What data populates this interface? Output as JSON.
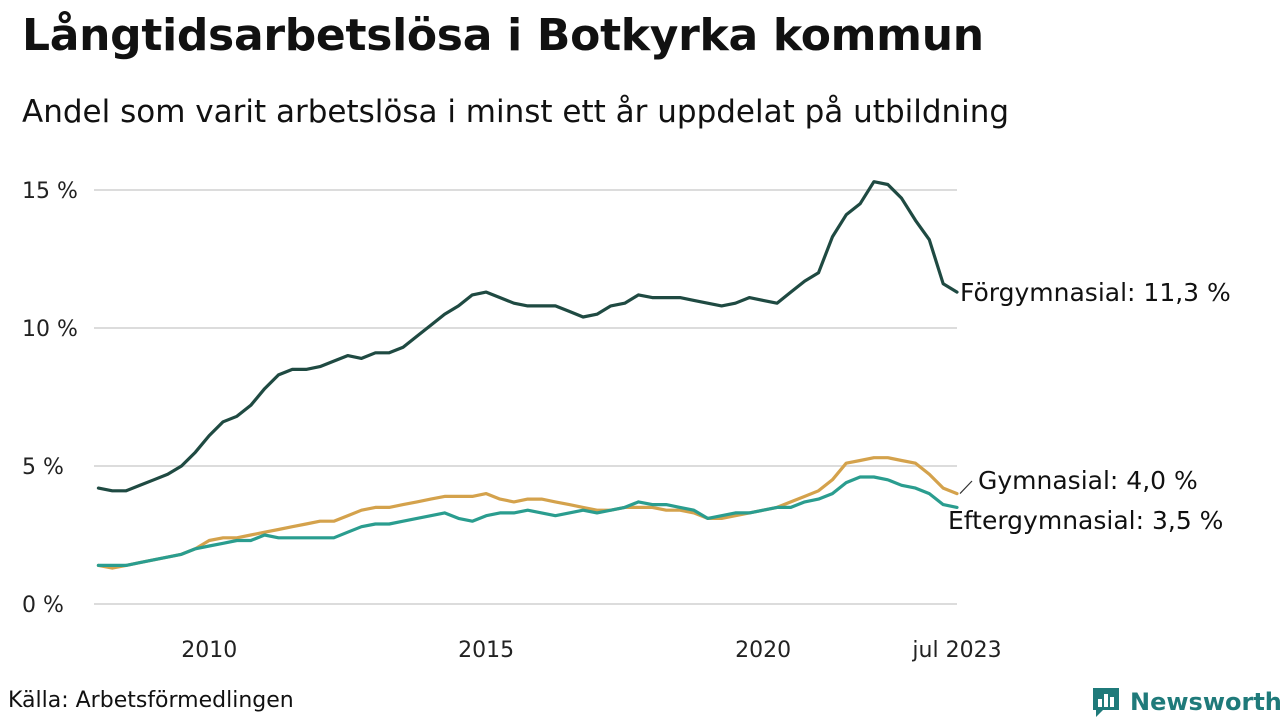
{
  "title": "Långtidsarbetslösa i Botkyrka kommun",
  "subtitle": "Andel som varit arbetslösa i minst ett år uppdelat på utbildning",
  "source": "Källa: Arbetsförmedlingen",
  "brand": {
    "name": "Newsworthy",
    "icon": "newsworthy-logo-icon",
    "color": "#1f7a7a"
  },
  "chart_data": {
    "type": "line",
    "ylim": [
      0,
      15
    ],
    "yticks": [
      0,
      5,
      10,
      15
    ],
    "ytick_labels": [
      "0 %",
      "5 %",
      "10 %",
      "15 %"
    ],
    "xlim": [
      2007.92,
      2023.5
    ],
    "xticks": [
      2010,
      2015,
      2020,
      2023.5
    ],
    "xtick_labels": [
      "2010",
      "2015",
      "2020",
      "jul 2023"
    ],
    "grid": true,
    "legend": "direct labels at line ends",
    "series": [
      {
        "name": "Förgymnasial",
        "end_label": "Förgymnasial: 11,3 %",
        "color": "#1f4a42",
        "points": [
          [
            2008.0,
            4.2
          ],
          [
            2008.25,
            4.1
          ],
          [
            2008.5,
            4.1
          ],
          [
            2008.75,
            4.3
          ],
          [
            2009.0,
            4.5
          ],
          [
            2009.25,
            4.7
          ],
          [
            2009.5,
            5.0
          ],
          [
            2009.75,
            5.5
          ],
          [
            2010.0,
            6.1
          ],
          [
            2010.25,
            6.6
          ],
          [
            2010.5,
            6.8
          ],
          [
            2010.75,
            7.2
          ],
          [
            2011.0,
            7.8
          ],
          [
            2011.25,
            8.3
          ],
          [
            2011.5,
            8.5
          ],
          [
            2011.75,
            8.5
          ],
          [
            2012.0,
            8.6
          ],
          [
            2012.25,
            8.8
          ],
          [
            2012.5,
            9.0
          ],
          [
            2012.75,
            8.9
          ],
          [
            2013.0,
            9.1
          ],
          [
            2013.25,
            9.1
          ],
          [
            2013.5,
            9.3
          ],
          [
            2013.75,
            9.7
          ],
          [
            2014.0,
            10.1
          ],
          [
            2014.25,
            10.5
          ],
          [
            2014.5,
            10.8
          ],
          [
            2014.75,
            11.2
          ],
          [
            2015.0,
            11.3
          ],
          [
            2015.25,
            11.1
          ],
          [
            2015.5,
            10.9
          ],
          [
            2015.75,
            10.8
          ],
          [
            2016.0,
            10.8
          ],
          [
            2016.25,
            10.8
          ],
          [
            2016.5,
            10.6
          ],
          [
            2016.75,
            10.4
          ],
          [
            2017.0,
            10.5
          ],
          [
            2017.25,
            10.8
          ],
          [
            2017.5,
            10.9
          ],
          [
            2017.75,
            11.2
          ],
          [
            2018.0,
            11.1
          ],
          [
            2018.25,
            11.1
          ],
          [
            2018.5,
            11.1
          ],
          [
            2018.75,
            11.0
          ],
          [
            2019.0,
            10.9
          ],
          [
            2019.25,
            10.8
          ],
          [
            2019.5,
            10.9
          ],
          [
            2019.75,
            11.1
          ],
          [
            2020.0,
            11.0
          ],
          [
            2020.25,
            10.9
          ],
          [
            2020.5,
            11.3
          ],
          [
            2020.75,
            11.7
          ],
          [
            2021.0,
            12.0
          ],
          [
            2021.25,
            13.3
          ],
          [
            2021.5,
            14.1
          ],
          [
            2021.75,
            14.5
          ],
          [
            2022.0,
            15.3
          ],
          [
            2022.25,
            15.2
          ],
          [
            2022.5,
            14.7
          ],
          [
            2022.75,
            13.9
          ],
          [
            2023.0,
            13.2
          ],
          [
            2023.25,
            11.6
          ],
          [
            2023.5,
            11.3
          ]
        ]
      },
      {
        "name": "Gymnasial",
        "end_label": "Gymnasial:  4,0 %",
        "color": "#d4a24c",
        "points": [
          [
            2008.0,
            1.4
          ],
          [
            2008.25,
            1.3
          ],
          [
            2008.5,
            1.4
          ],
          [
            2008.75,
            1.5
          ],
          [
            2009.0,
            1.6
          ],
          [
            2009.25,
            1.7
          ],
          [
            2009.5,
            1.8
          ],
          [
            2009.75,
            2.0
          ],
          [
            2010.0,
            2.3
          ],
          [
            2010.25,
            2.4
          ],
          [
            2010.5,
            2.4
          ],
          [
            2010.75,
            2.5
          ],
          [
            2011.0,
            2.6
          ],
          [
            2011.25,
            2.7
          ],
          [
            2011.5,
            2.8
          ],
          [
            2011.75,
            2.9
          ],
          [
            2012.0,
            3.0
          ],
          [
            2012.25,
            3.0
          ],
          [
            2012.5,
            3.2
          ],
          [
            2012.75,
            3.4
          ],
          [
            2013.0,
            3.5
          ],
          [
            2013.25,
            3.5
          ],
          [
            2013.5,
            3.6
          ],
          [
            2013.75,
            3.7
          ],
          [
            2014.0,
            3.8
          ],
          [
            2014.25,
            3.9
          ],
          [
            2014.5,
            3.9
          ],
          [
            2014.75,
            3.9
          ],
          [
            2015.0,
            4.0
          ],
          [
            2015.25,
            3.8
          ],
          [
            2015.5,
            3.7
          ],
          [
            2015.75,
            3.8
          ],
          [
            2016.0,
            3.8
          ],
          [
            2016.25,
            3.7
          ],
          [
            2016.5,
            3.6
          ],
          [
            2016.75,
            3.5
          ],
          [
            2017.0,
            3.4
          ],
          [
            2017.25,
            3.4
          ],
          [
            2017.5,
            3.5
          ],
          [
            2017.75,
            3.5
          ],
          [
            2018.0,
            3.5
          ],
          [
            2018.25,
            3.4
          ],
          [
            2018.5,
            3.4
          ],
          [
            2018.75,
            3.3
          ],
          [
            2019.0,
            3.1
          ],
          [
            2019.25,
            3.1
          ],
          [
            2019.5,
            3.2
          ],
          [
            2019.75,
            3.3
          ],
          [
            2020.0,
            3.4
          ],
          [
            2020.25,
            3.5
          ],
          [
            2020.5,
            3.7
          ],
          [
            2020.75,
            3.9
          ],
          [
            2021.0,
            4.1
          ],
          [
            2021.25,
            4.5
          ],
          [
            2021.5,
            5.1
          ],
          [
            2021.75,
            5.2
          ],
          [
            2022.0,
            5.3
          ],
          [
            2022.25,
            5.3
          ],
          [
            2022.5,
            5.2
          ],
          [
            2022.75,
            5.1
          ],
          [
            2023.0,
            4.7
          ],
          [
            2023.25,
            4.2
          ],
          [
            2023.5,
            4.0
          ]
        ]
      },
      {
        "name": "Eftergymnasial",
        "end_label": "Eftergymnasial:  3,5 %",
        "color": "#2a9d8f",
        "points": [
          [
            2008.0,
            1.4
          ],
          [
            2008.25,
            1.4
          ],
          [
            2008.5,
            1.4
          ],
          [
            2008.75,
            1.5
          ],
          [
            2009.0,
            1.6
          ],
          [
            2009.25,
            1.7
          ],
          [
            2009.5,
            1.8
          ],
          [
            2009.75,
            2.0
          ],
          [
            2010.0,
            2.1
          ],
          [
            2010.25,
            2.2
          ],
          [
            2010.5,
            2.3
          ],
          [
            2010.75,
            2.3
          ],
          [
            2011.0,
            2.5
          ],
          [
            2011.25,
            2.4
          ],
          [
            2011.5,
            2.4
          ],
          [
            2011.75,
            2.4
          ],
          [
            2012.0,
            2.4
          ],
          [
            2012.25,
            2.4
          ],
          [
            2012.5,
            2.6
          ],
          [
            2012.75,
            2.8
          ],
          [
            2013.0,
            2.9
          ],
          [
            2013.25,
            2.9
          ],
          [
            2013.5,
            3.0
          ],
          [
            2013.75,
            3.1
          ],
          [
            2014.0,
            3.2
          ],
          [
            2014.25,
            3.3
          ],
          [
            2014.5,
            3.1
          ],
          [
            2014.75,
            3.0
          ],
          [
            2015.0,
            3.2
          ],
          [
            2015.25,
            3.3
          ],
          [
            2015.5,
            3.3
          ],
          [
            2015.75,
            3.4
          ],
          [
            2016.0,
            3.3
          ],
          [
            2016.25,
            3.2
          ],
          [
            2016.5,
            3.3
          ],
          [
            2016.75,
            3.4
          ],
          [
            2017.0,
            3.3
          ],
          [
            2017.25,
            3.4
          ],
          [
            2017.5,
            3.5
          ],
          [
            2017.75,
            3.7
          ],
          [
            2018.0,
            3.6
          ],
          [
            2018.25,
            3.6
          ],
          [
            2018.5,
            3.5
          ],
          [
            2018.75,
            3.4
          ],
          [
            2019.0,
            3.1
          ],
          [
            2019.25,
            3.2
          ],
          [
            2019.5,
            3.3
          ],
          [
            2019.75,
            3.3
          ],
          [
            2020.0,
            3.4
          ],
          [
            2020.25,
            3.5
          ],
          [
            2020.5,
            3.5
          ],
          [
            2020.75,
            3.7
          ],
          [
            2021.0,
            3.8
          ],
          [
            2021.25,
            4.0
          ],
          [
            2021.5,
            4.4
          ],
          [
            2021.75,
            4.6
          ],
          [
            2022.0,
            4.6
          ],
          [
            2022.25,
            4.5
          ],
          [
            2022.5,
            4.3
          ],
          [
            2022.75,
            4.2
          ],
          [
            2023.0,
            4.0
          ],
          [
            2023.25,
            3.6
          ],
          [
            2023.5,
            3.5
          ]
        ]
      }
    ]
  }
}
